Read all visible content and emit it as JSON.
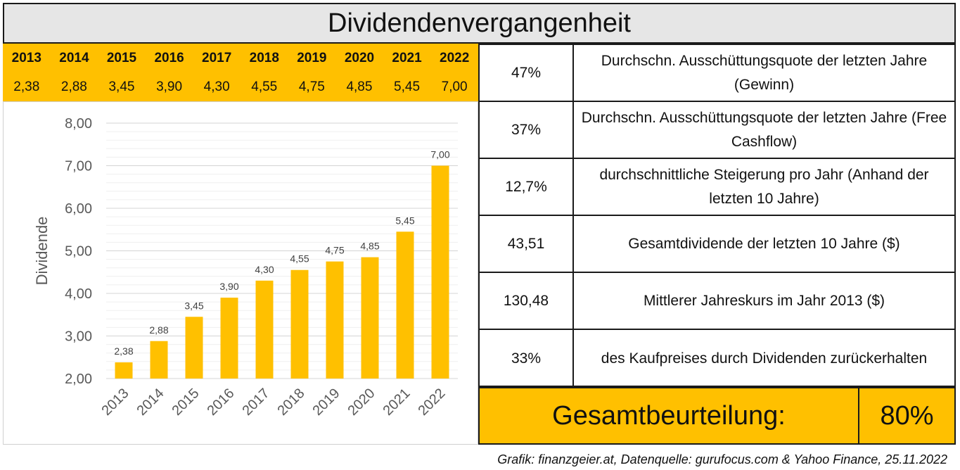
{
  "title": "Dividendenvergangenheit",
  "year_table": {
    "years": [
      "2013",
      "2014",
      "2015",
      "2016",
      "2017",
      "2018",
      "2019",
      "2020",
      "2021",
      "2022"
    ],
    "values": [
      "2,38",
      "2,88",
      "3,45",
      "3,90",
      "4,30",
      "4,55",
      "4,75",
      "4,85",
      "5,45",
      "7,00"
    ]
  },
  "chart_data": {
    "type": "bar",
    "categories": [
      "2013",
      "2014",
      "2015",
      "2016",
      "2017",
      "2018",
      "2019",
      "2020",
      "2021",
      "2022"
    ],
    "values": [
      2.38,
      2.88,
      3.45,
      3.9,
      4.3,
      4.55,
      4.75,
      4.85,
      5.45,
      7.0
    ],
    "value_labels": [
      "2,38",
      "2,88",
      "3,45",
      "3,90",
      "4,30",
      "4,55",
      "4,75",
      "4,85",
      "5,45",
      "7,00"
    ],
    "ylabel": "Dividende",
    "xlabel": "",
    "ylim": [
      2,
      8
    ],
    "yticks": [
      2,
      3,
      4,
      5,
      6,
      7,
      8
    ],
    "ytick_labels": [
      "2,00",
      "3,00",
      "4,00",
      "5,00",
      "6,00",
      "7,00",
      "8,00"
    ],
    "bar_color": "#ffc000",
    "grid": true
  },
  "info_rows": [
    {
      "value": "47%",
      "desc": "Durchschn. Ausschüttungsquote der letzten Jahre (Gewinn)"
    },
    {
      "value": "37%",
      "desc": "Durchschn. Ausschüttungsquote der letzten Jahre (Free Cashflow)"
    },
    {
      "value": "12,7%",
      "desc": "durchschnittliche Steigerung pro Jahr (Anhand der letzten 10 Jahre)"
    },
    {
      "value": "43,51",
      "desc": "Gesamtdividende der letzten 10 Jahre ($)"
    },
    {
      "value": "130,48",
      "desc": "Mittlerer Jahreskurs im Jahr 2013 ($)"
    },
    {
      "value": "33%",
      "desc": "des Kaufpreises durch Dividenden zurückerhalten"
    }
  ],
  "verdict": {
    "label": "Gesamtbeurteilung:",
    "value": "80%"
  },
  "source": "Grafik: finanzgeier.at, Datenquelle: gurufocus.com & Yahoo Finance, 25.11.2022",
  "colors": {
    "accent": "#ffc000",
    "header_bg": "#e6e6e6",
    "border": "#1a1a1a"
  }
}
